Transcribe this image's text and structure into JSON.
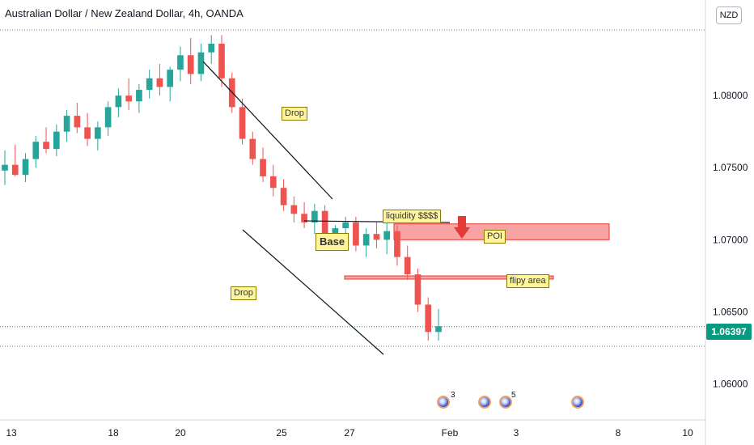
{
  "title": "Australian Dollar / New Zealand Dollar, 4h, OANDA",
  "currency": "NZD",
  "last_price": "1.06397",
  "colors": {
    "up": "#26a69a",
    "down": "#ef5350",
    "poi_fill": "#f7a3a3",
    "poi_border": "#e53935",
    "last_price": "#089981",
    "label_bg": "#fff59d"
  },
  "annotations": {
    "drop_top": "Drop",
    "drop_bottom": "Drop",
    "base": "Base",
    "liquidity": "liquidity $$$$",
    "poi": "POI",
    "flipy": "flipy area"
  },
  "events": [
    {
      "count": "3"
    },
    {
      "count": ""
    },
    {
      "count": "5"
    },
    {
      "count": ""
    }
  ],
  "chart_data": {
    "type": "candlestick",
    "title": "Australian Dollar / New Zealand Dollar, 4h, OANDA",
    "ylim": [
      1.0575,
      1.0845
    ],
    "y_ticks": [
      "1.06000",
      "1.06500",
      "1.07000",
      "1.07500",
      "1.08000"
    ],
    "x_ticks": [
      "13",
      "18",
      "20",
      "25",
      "27",
      "Feb",
      "3",
      "8",
      "10"
    ],
    "last_price": 1.06397,
    "zones": [
      {
        "name": "POI",
        "from": 1.07,
        "to": 1.0711
      },
      {
        "name": "flipy area",
        "from": 1.0675,
        "to": 1.0677
      }
    ],
    "ohlc": [
      [
        1.0748,
        1.0762,
        1.0738,
        1.0752
      ],
      [
        1.0752,
        1.0766,
        1.0744,
        1.0745
      ],
      [
        1.0745,
        1.076,
        1.074,
        1.0756
      ],
      [
        1.0756,
        1.0772,
        1.075,
        1.0768
      ],
      [
        1.0768,
        1.0778,
        1.076,
        1.0763
      ],
      [
        1.0763,
        1.078,
        1.0758,
        1.0775
      ],
      [
        1.0775,
        1.079,
        1.0768,
        1.0786
      ],
      [
        1.0786,
        1.0795,
        1.0774,
        1.0778
      ],
      [
        1.0778,
        1.0788,
        1.0765,
        1.077
      ],
      [
        1.077,
        1.0782,
        1.0762,
        1.0778
      ],
      [
        1.0778,
        1.0796,
        1.0772,
        1.0792
      ],
      [
        1.0792,
        1.0805,
        1.0785,
        1.08
      ],
      [
        1.08,
        1.0812,
        1.079,
        1.0796
      ],
      [
        1.0796,
        1.0808,
        1.0788,
        1.0804
      ],
      [
        1.0804,
        1.0818,
        1.0798,
        1.0812
      ],
      [
        1.0812,
        1.0822,
        1.08,
        1.0806
      ],
      [
        1.0806,
        1.082,
        1.0796,
        1.0818
      ],
      [
        1.0818,
        1.0834,
        1.081,
        1.0828
      ],
      [
        1.0828,
        1.084,
        1.0808,
        1.0815
      ],
      [
        1.0815,
        1.0836,
        1.081,
        1.083
      ],
      [
        1.083,
        1.0842,
        1.0822,
        1.0836
      ],
      [
        1.0836,
        1.0842,
        1.0806,
        1.0812
      ],
      [
        1.0812,
        1.0816,
        1.0788,
        1.0792
      ],
      [
        1.0792,
        1.0798,
        1.0766,
        1.077
      ],
      [
        1.077,
        1.0775,
        1.0752,
        1.0756
      ],
      [
        1.0756,
        1.0764,
        1.074,
        1.0744
      ],
      [
        1.0744,
        1.0752,
        1.073,
        1.0736
      ],
      [
        1.0736,
        1.0742,
        1.072,
        1.0724
      ],
      [
        1.0724,
        1.073,
        1.0712,
        1.0718
      ],
      [
        1.0718,
        1.0726,
        1.0708,
        1.0712
      ],
      [
        1.0712,
        1.0725,
        1.0704,
        1.072
      ],
      [
        1.072,
        1.0724,
        1.0698,
        1.0702
      ],
      [
        1.0702,
        1.071,
        1.0694,
        1.0708
      ],
      [
        1.0708,
        1.0716,
        1.07,
        1.0712
      ],
      [
        1.0712,
        1.0716,
        1.0692,
        1.0696
      ],
      [
        1.0696,
        1.0708,
        1.0688,
        1.0704
      ],
      [
        1.0704,
        1.0712,
        1.0694,
        1.07
      ],
      [
        1.07,
        1.0713,
        1.069,
        1.0706
      ],
      [
        1.0706,
        1.071,
        1.0682,
        1.0688
      ],
      [
        1.0688,
        1.0696,
        1.0672,
        1.0676
      ],
      [
        1.0676,
        1.068,
        1.065,
        1.0655
      ],
      [
        1.0655,
        1.066,
        1.063,
        1.0636
      ],
      [
        1.0636,
        1.0652,
        1.063,
        1.064
      ]
    ]
  }
}
